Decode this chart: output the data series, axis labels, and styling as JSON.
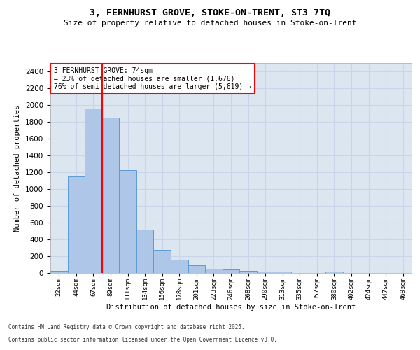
{
  "title1": "3, FERNHURST GROVE, STOKE-ON-TRENT, ST3 7TQ",
  "title2": "Size of property relative to detached houses in Stoke-on-Trent",
  "xlabel": "Distribution of detached houses by size in Stoke-on-Trent",
  "ylabel": "Number of detached properties",
  "categories": [
    "22sqm",
    "44sqm",
    "67sqm",
    "89sqm",
    "111sqm",
    "134sqm",
    "156sqm",
    "178sqm",
    "201sqm",
    "223sqm",
    "246sqm",
    "268sqm",
    "290sqm",
    "313sqm",
    "335sqm",
    "357sqm",
    "380sqm",
    "402sqm",
    "424sqm",
    "447sqm",
    "469sqm"
  ],
  "values": [
    25,
    1150,
    1960,
    1850,
    1225,
    515,
    275,
    155,
    90,
    50,
    40,
    25,
    20,
    15,
    0,
    0,
    15,
    0,
    0,
    0,
    0
  ],
  "bar_color": "#aec6e8",
  "bar_edge_color": "#5b9bd5",
  "red_line_x": 2.5,
  "annotation_text": "3 FERNHURST GROVE: 74sqm\n← 23% of detached houses are smaller (1,676)\n76% of semi-detached houses are larger (5,619) →",
  "annotation_box_color": "white",
  "annotation_box_edge": "red",
  "ylim": [
    0,
    2500
  ],
  "yticks": [
    0,
    200,
    400,
    600,
    800,
    1000,
    1200,
    1400,
    1600,
    1800,
    2000,
    2200,
    2400
  ],
  "grid_color": "#c8d4e8",
  "plot_bg_color": "#dce6f1",
  "footer1": "Contains HM Land Registry data © Crown copyright and database right 2025.",
  "footer2": "Contains public sector information licensed under the Open Government Licence v3.0."
}
